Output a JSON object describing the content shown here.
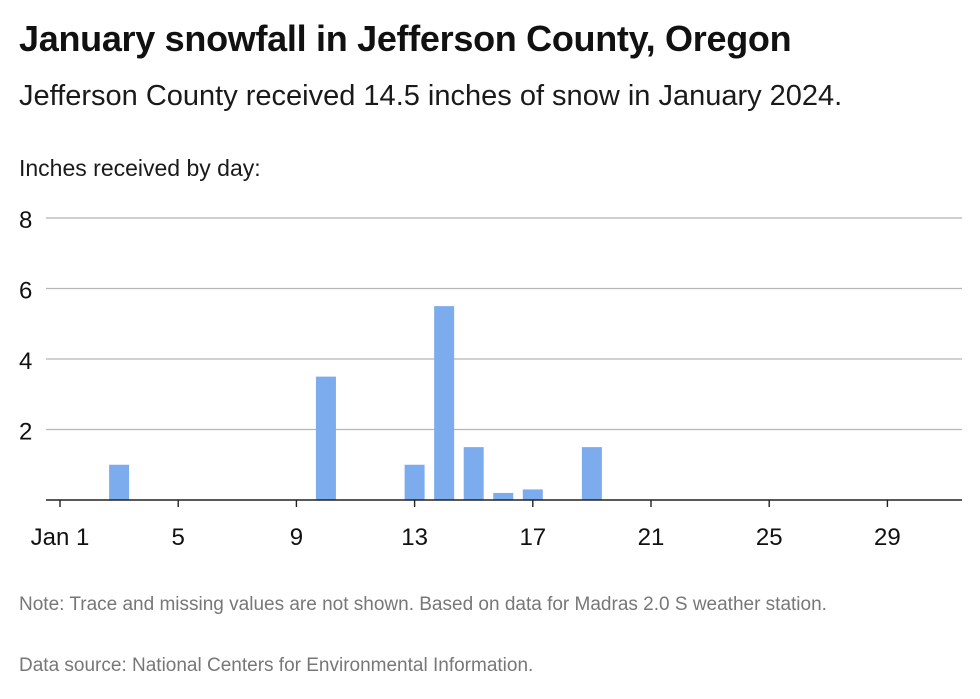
{
  "title": "January snowfall in Jefferson County, Oregon",
  "subtitle": "Jefferson County received 14.5 inches of snow in January 2024.",
  "axis_caption": "Inches received by day:",
  "note": "Note: Trace and missing values are not shown. Based on data for Madras 2.0 S weather station.",
  "source": "Data source: National Centers for Environmental Information.",
  "colors": {
    "bar": "#7cacee",
    "grid": "#b5b5b5",
    "axis": "#222222"
  },
  "chart_data": {
    "type": "bar",
    "x_tick_labels": [
      "Jan 1",
      "5",
      "9",
      "13",
      "17",
      "21",
      "25",
      "29"
    ],
    "x_tick_days": [
      1,
      5,
      9,
      13,
      17,
      21,
      25,
      29
    ],
    "xlim": [
      1,
      31
    ],
    "ylim": [
      0,
      8
    ],
    "y_ticks": [
      2,
      4,
      6,
      8
    ],
    "grid": true,
    "days": [
      3,
      10,
      13,
      14,
      15,
      16,
      17,
      19
    ],
    "values": [
      1,
      3.5,
      1,
      5.5,
      1.5,
      0.2,
      0.3,
      1.5
    ]
  }
}
